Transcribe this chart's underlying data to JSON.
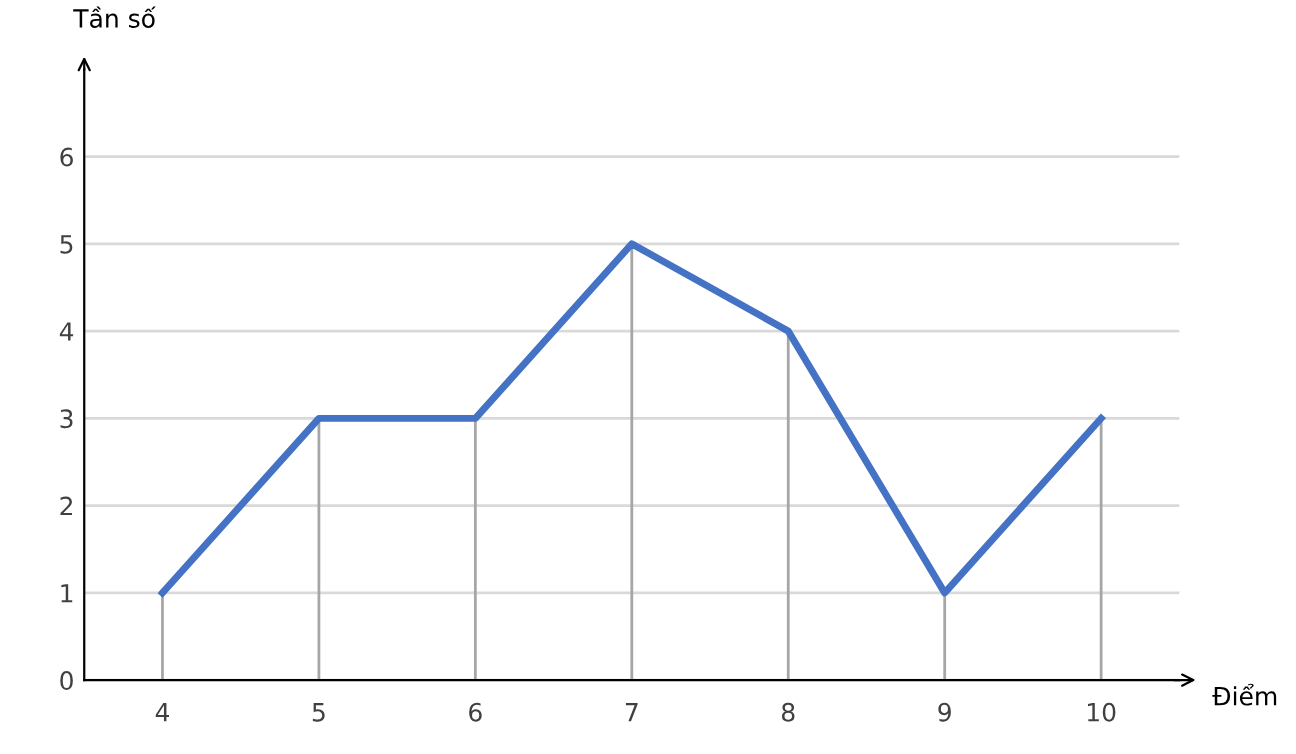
{
  "chart_data": {
    "type": "line",
    "xlabel": "Điểm",
    "ylabel": "Tần số",
    "categories": [
      "4",
      "5",
      "6",
      "7",
      "8",
      "9",
      "10"
    ],
    "series": [
      {
        "color": "#4472c4",
        "values": [
          1,
          3,
          3,
          5,
          4,
          1,
          3
        ],
        "errors": [
          [
            0,
            1
          ],
          [
            0,
            3
          ],
          [
            0,
            3
          ],
          [
            0,
            5
          ],
          [
            0,
            4
          ],
          [
            0,
            1
          ],
          [
            0,
            3
          ]
        ]
      }
    ],
    "ylim": [
      0,
      7
    ],
    "yticks": [
      0,
      1,
      2,
      3,
      4,
      5,
      6
    ],
    "grid": "y",
    "marker": "none",
    "line_style": "solid"
  }
}
